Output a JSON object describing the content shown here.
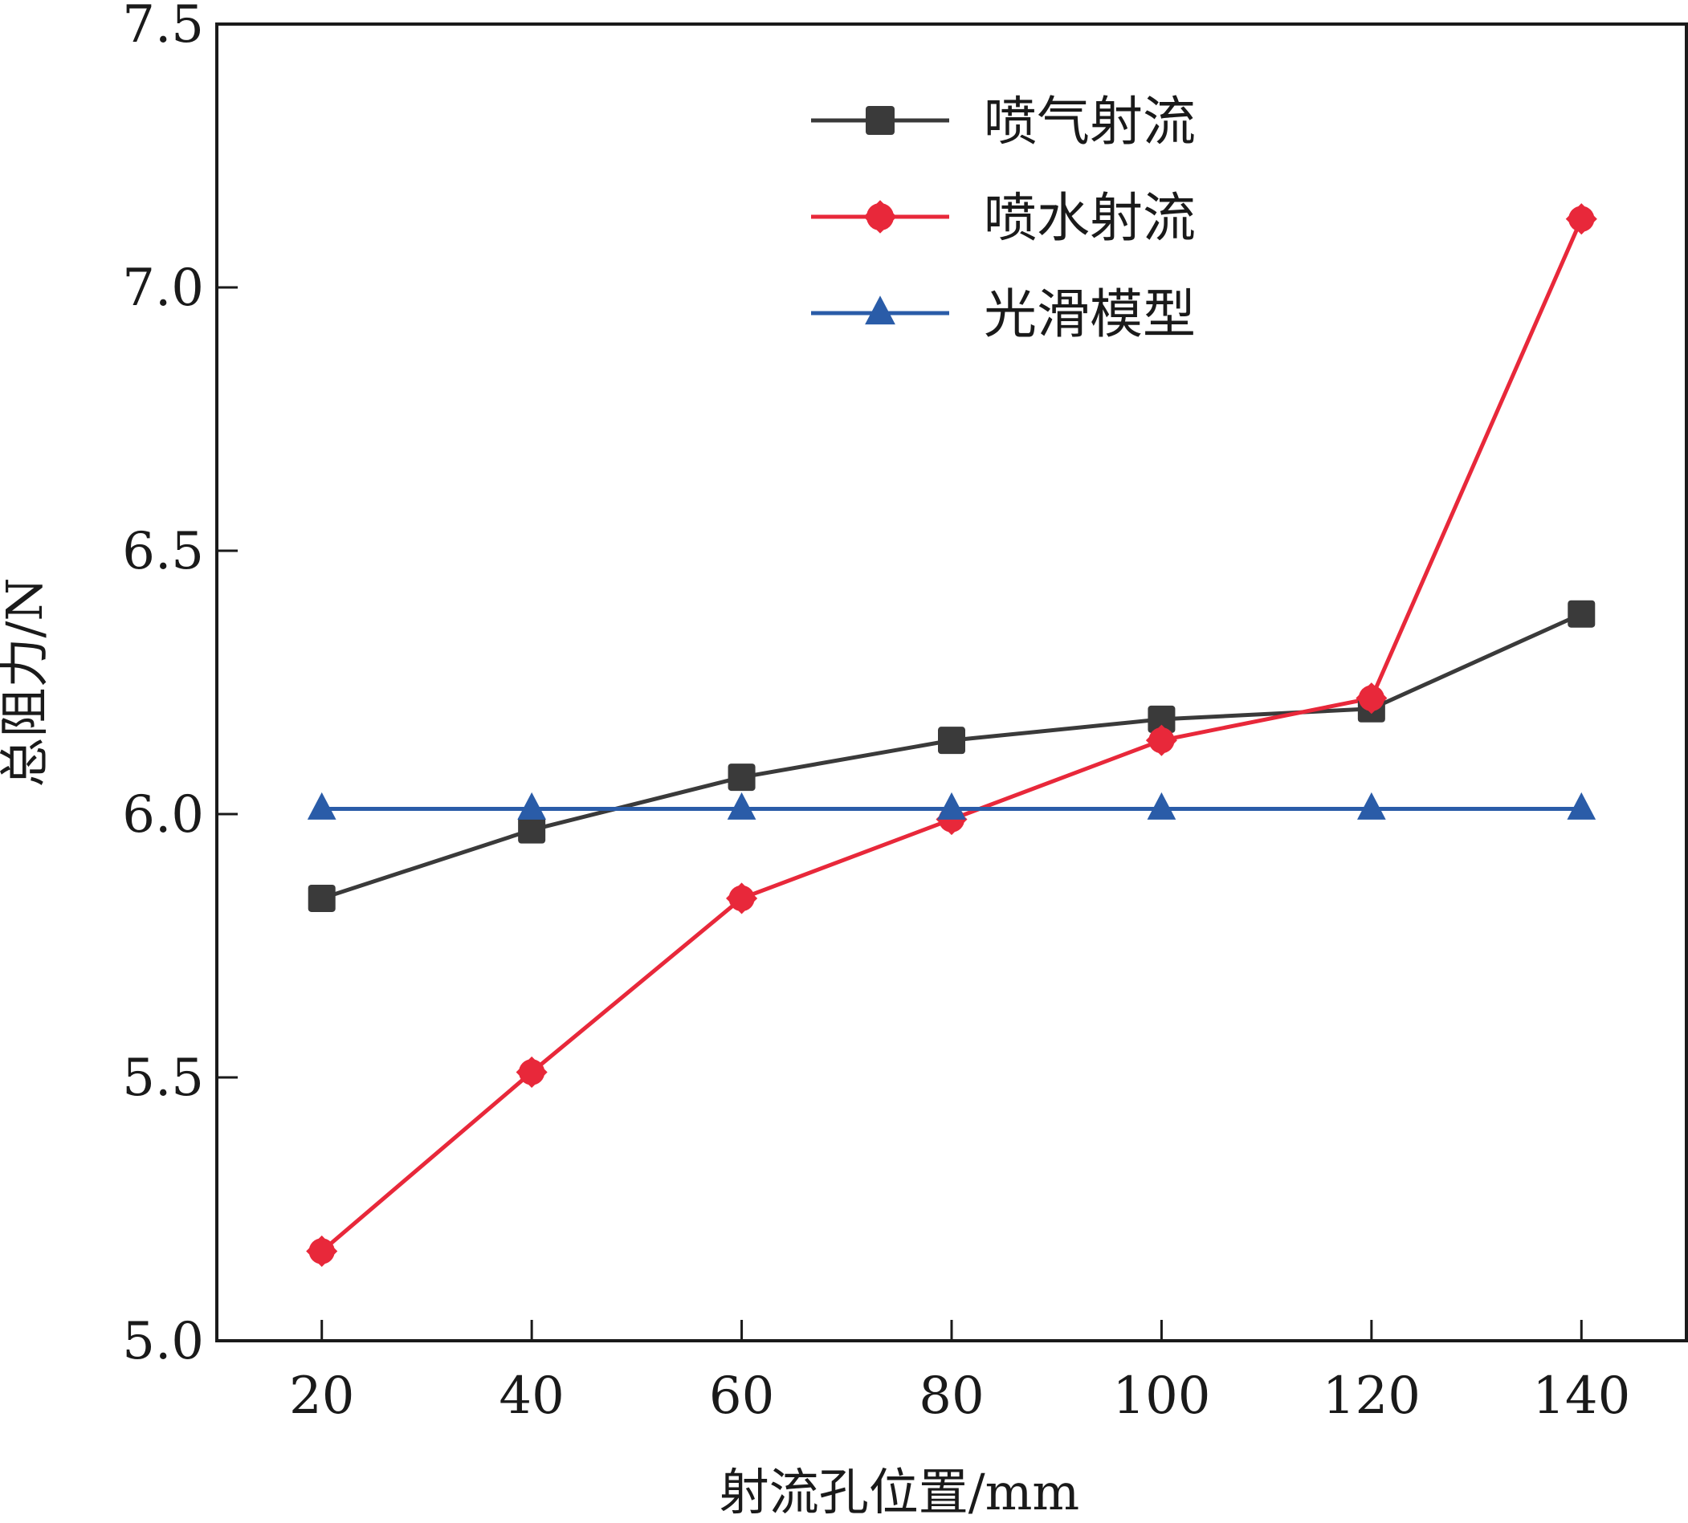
{
  "chart_data": {
    "type": "line",
    "title": "",
    "xlabel": "射流孔位置/mm",
    "ylabel": "总阻力/N",
    "x": [
      20,
      40,
      60,
      80,
      100,
      120,
      140
    ],
    "xlim": [
      10,
      150
    ],
    "ylim": [
      5.0,
      7.5
    ],
    "xticks": [
      "20",
      "40",
      "60",
      "80",
      "100",
      "120",
      "140"
    ],
    "yticks": [
      "5.0",
      "5.5",
      "6.0",
      "6.5",
      "7.0",
      "7.5"
    ],
    "legend_position": "top-center",
    "grid": false,
    "series": [
      {
        "name": "喷气射流",
        "color": "#3a3a3a",
        "marker": "square",
        "values": [
          5.84,
          5.97,
          6.07,
          6.14,
          6.18,
          6.2,
          6.38
        ]
      },
      {
        "name": "喷水射流",
        "color": "#e8283a",
        "marker": "diamond",
        "values": [
          5.17,
          5.51,
          5.84,
          5.99,
          6.14,
          6.22,
          7.13
        ]
      },
      {
        "name": "光滑模型",
        "color": "#2a5ca8",
        "marker": "triangle",
        "values": [
          6.01,
          6.01,
          6.01,
          6.01,
          6.01,
          6.01,
          6.01
        ]
      }
    ]
  }
}
